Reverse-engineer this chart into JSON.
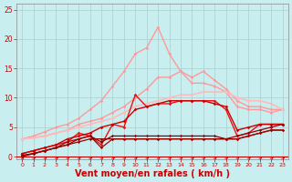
{
  "background_color": "#c8eef0",
  "grid_color": "#aacccc",
  "xlabel": "Vent moyen/en rafales ( km/h )",
  "xlabel_color": "#cc0000",
  "xlabel_fontsize": 7,
  "xtick_color": "#cc0000",
  "ytick_color": "#cc0000",
  "xlim": [
    -0.5,
    23.5
  ],
  "ylim": [
    -0.5,
    26
  ],
  "yticks": [
    0,
    5,
    10,
    15,
    20,
    25
  ],
  "xticks": [
    0,
    1,
    2,
    3,
    4,
    5,
    6,
    7,
    8,
    9,
    10,
    11,
    12,
    13,
    14,
    15,
    16,
    17,
    18,
    19,
    20,
    21,
    22,
    23
  ],
  "lines": [
    {
      "x": [
        0,
        1,
        2,
        3,
        4,
        5,
        6,
        7,
        8,
        9,
        10,
        11,
        12,
        13,
        14,
        15,
        16,
        17,
        18,
        19,
        20,
        21,
        22,
        23
      ],
      "y": [
        3.0,
        3.5,
        4.2,
        5.0,
        5.5,
        6.5,
        8.0,
        9.5,
        12.0,
        14.5,
        17.5,
        18.5,
        22.0,
        17.5,
        14.5,
        13.5,
        14.5,
        13.0,
        11.5,
        9.5,
        8.5,
        8.5,
        8.0,
        8.0
      ],
      "color": "#ff9999",
      "lw": 1.0,
      "marker": "D",
      "ms": 1.8
    },
    {
      "x": [
        0,
        1,
        2,
        3,
        4,
        5,
        6,
        7,
        8,
        9,
        10,
        11,
        12,
        13,
        14,
        15,
        16,
        17,
        18,
        19,
        20,
        21,
        22,
        23
      ],
      "y": [
        3.0,
        3.2,
        3.5,
        4.0,
        4.5,
        5.5,
        6.0,
        6.5,
        7.5,
        8.5,
        10.0,
        11.5,
        13.5,
        13.5,
        14.5,
        12.5,
        12.5,
        12.0,
        11.0,
        8.5,
        8.0,
        8.0,
        7.5,
        8.0
      ],
      "color": "#ff9999",
      "lw": 1.0,
      "marker": "D",
      "ms": 1.8
    },
    {
      "x": [
        0,
        1,
        2,
        3,
        4,
        5,
        6,
        7,
        8,
        9,
        10,
        11,
        12,
        13,
        14,
        15,
        16,
        17,
        18,
        19,
        20,
        21,
        22,
        23
      ],
      "y": [
        3.0,
        3.2,
        3.5,
        4.0,
        4.5,
        5.0,
        5.5,
        6.0,
        6.5,
        7.5,
        8.5,
        9.0,
        9.5,
        10.0,
        10.5,
        10.5,
        11.0,
        11.0,
        11.0,
        10.0,
        9.5,
        9.5,
        9.0,
        8.0
      ],
      "color": "#ffbbbb",
      "lw": 1.2,
      "marker": "D",
      "ms": 1.8
    },
    {
      "x": [
        0,
        1,
        2,
        3,
        4,
        5,
        6,
        7,
        8,
        9,
        10,
        11,
        12,
        13,
        14,
        15,
        16,
        17,
        18,
        19,
        20,
        21,
        22,
        23
      ],
      "y": [
        0.5,
        1.0,
        1.5,
        2.0,
        2.5,
        4.0,
        3.5,
        2.0,
        5.5,
        5.0,
        10.5,
        8.5,
        9.0,
        9.0,
        9.5,
        9.5,
        9.5,
        9.5,
        8.0,
        3.5,
        4.0,
        5.5,
        5.5,
        5.5
      ],
      "color": "#ee1111",
      "lw": 1.0,
      "marker": "D",
      "ms": 1.8
    },
    {
      "x": [
        0,
        1,
        2,
        3,
        4,
        5,
        6,
        7,
        8,
        9,
        10,
        11,
        12,
        13,
        14,
        15,
        16,
        17,
        18,
        19,
        20,
        21,
        22,
        23
      ],
      "y": [
        0.5,
        1.0,
        1.5,
        2.0,
        3.0,
        3.5,
        4.0,
        5.0,
        5.5,
        6.0,
        8.0,
        8.5,
        9.0,
        9.5,
        9.5,
        9.5,
        9.5,
        9.0,
        8.5,
        4.5,
        5.0,
        5.5,
        5.5,
        5.5
      ],
      "color": "#cc0000",
      "lw": 1.0,
      "marker": "D",
      "ms": 1.8
    },
    {
      "x": [
        0,
        1,
        2,
        3,
        4,
        5,
        6,
        7,
        8,
        9,
        10,
        11,
        12,
        13,
        14,
        15,
        16,
        17,
        18,
        19,
        20,
        21,
        22,
        23
      ],
      "y": [
        0.0,
        0.5,
        1.0,
        1.5,
        2.0,
        3.0,
        3.5,
        2.5,
        3.5,
        3.5,
        3.5,
        3.5,
        3.5,
        3.5,
        3.5,
        3.5,
        3.5,
        3.5,
        3.0,
        3.0,
        3.5,
        4.0,
        4.5,
        4.5
      ],
      "color": "#880000",
      "lw": 0.9,
      "marker": "D",
      "ms": 1.6
    },
    {
      "x": [
        0,
        1,
        2,
        3,
        4,
        5,
        6,
        7,
        8,
        9,
        10,
        11,
        12,
        13,
        14,
        15,
        16,
        17,
        18,
        19,
        20,
        21,
        22,
        23
      ],
      "y": [
        0.2,
        0.5,
        1.0,
        1.5,
        2.5,
        3.0,
        3.5,
        1.5,
        3.0,
        3.0,
        3.0,
        3.0,
        3.0,
        3.0,
        3.0,
        3.0,
        3.0,
        3.0,
        3.0,
        3.0,
        3.5,
        4.0,
        4.5,
        4.5
      ],
      "color": "#aa0000",
      "lw": 0.9,
      "marker": "D",
      "ms": 1.6
    },
    {
      "x": [
        0,
        1,
        2,
        3,
        4,
        5,
        6,
        7,
        8,
        9,
        10,
        11,
        12,
        13,
        14,
        15,
        16,
        17,
        18,
        19,
        20,
        21,
        22,
        23
      ],
      "y": [
        0.2,
        0.5,
        1.0,
        1.5,
        2.0,
        2.5,
        3.0,
        3.0,
        3.0,
        3.0,
        3.0,
        3.0,
        3.0,
        3.0,
        3.0,
        3.0,
        3.0,
        3.0,
        3.0,
        3.5,
        4.0,
        4.5,
        5.0,
        5.5
      ],
      "color": "#990000",
      "lw": 0.9,
      "marker": "D",
      "ms": 1.6
    }
  ]
}
